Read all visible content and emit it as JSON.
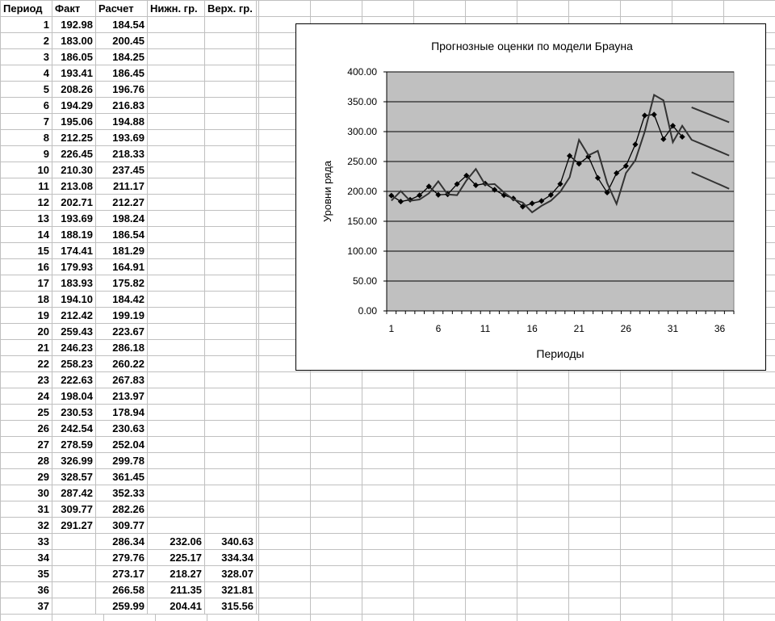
{
  "table": {
    "headers": [
      "Период",
      "Факт",
      "Расчет",
      "Нижн. гр.",
      "Верх. гр."
    ],
    "rows": [
      [
        "1",
        "192.98",
        "184.54",
        "",
        ""
      ],
      [
        "2",
        "183.00",
        "200.45",
        "",
        ""
      ],
      [
        "3",
        "186.05",
        "184.25",
        "",
        ""
      ],
      [
        "4",
        "193.41",
        "186.45",
        "",
        ""
      ],
      [
        "5",
        "208.26",
        "196.76",
        "",
        ""
      ],
      [
        "6",
        "194.29",
        "216.83",
        "",
        ""
      ],
      [
        "7",
        "195.06",
        "194.88",
        "",
        ""
      ],
      [
        "8",
        "212.25",
        "193.69",
        "",
        ""
      ],
      [
        "9",
        "226.45",
        "218.33",
        "",
        ""
      ],
      [
        "10",
        "210.30",
        "237.45",
        "",
        ""
      ],
      [
        "11",
        "213.08",
        "211.17",
        "",
        ""
      ],
      [
        "12",
        "202.71",
        "212.27",
        "",
        ""
      ],
      [
        "13",
        "193.69",
        "198.24",
        "",
        ""
      ],
      [
        "14",
        "188.19",
        "186.54",
        "",
        ""
      ],
      [
        "15",
        "174.41",
        "181.29",
        "",
        ""
      ],
      [
        "16",
        "179.93",
        "164.91",
        "",
        ""
      ],
      [
        "17",
        "183.93",
        "175.82",
        "",
        ""
      ],
      [
        "18",
        "194.10",
        "184.42",
        "",
        ""
      ],
      [
        "19",
        "212.42",
        "199.19",
        "",
        ""
      ],
      [
        "20",
        "259.43",
        "223.67",
        "",
        ""
      ],
      [
        "21",
        "246.23",
        "286.18",
        "",
        ""
      ],
      [
        "22",
        "258.23",
        "260.22",
        "",
        ""
      ],
      [
        "23",
        "222.63",
        "267.83",
        "",
        ""
      ],
      [
        "24",
        "198.04",
        "213.97",
        "",
        ""
      ],
      [
        "25",
        "230.53",
        "178.94",
        "",
        ""
      ],
      [
        "26",
        "242.54",
        "230.63",
        "",
        ""
      ],
      [
        "27",
        "278.59",
        "252.04",
        "",
        ""
      ],
      [
        "28",
        "326.99",
        "299.78",
        "",
        ""
      ],
      [
        "29",
        "328.57",
        "361.45",
        "",
        ""
      ],
      [
        "30",
        "287.42",
        "352.33",
        "",
        ""
      ],
      [
        "31",
        "309.77",
        "282.26",
        "",
        ""
      ],
      [
        "32",
        "291.27",
        "309.77",
        "",
        ""
      ],
      [
        "33",
        "",
        "286.34",
        "232.06",
        "340.63"
      ],
      [
        "34",
        "",
        "279.76",
        "225.17",
        "334.34"
      ],
      [
        "35",
        "",
        "273.17",
        "218.27",
        "328.07"
      ],
      [
        "36",
        "",
        "266.58",
        "211.35",
        "321.81"
      ],
      [
        "37",
        "",
        "259.99",
        "204.41",
        "315.56"
      ]
    ]
  },
  "chart_data": {
    "type": "line",
    "title": "Прогнозные оценки по модели Брауна",
    "xlabel": "Периоды",
    "ylabel": "Уровни ряда",
    "x": [
      1,
      2,
      3,
      4,
      5,
      6,
      7,
      8,
      9,
      10,
      11,
      12,
      13,
      14,
      15,
      16,
      17,
      18,
      19,
      20,
      21,
      22,
      23,
      24,
      25,
      26,
      27,
      28,
      29,
      30,
      31,
      32,
      33,
      34,
      35,
      36,
      37
    ],
    "x_tick_labels": [
      "1",
      "6",
      "11",
      "16",
      "21",
      "26",
      "31",
      "36"
    ],
    "y_tick_labels": [
      "0.00",
      "50.00",
      "100.00",
      "150.00",
      "200.00",
      "250.00",
      "300.00",
      "350.00",
      "400.00"
    ],
    "ylim": [
      0,
      400
    ],
    "grid": "horizontal",
    "legend": "none",
    "plot_background": "#c0c0c0",
    "series": [
      {
        "key": "fact",
        "marker": "diamond",
        "values": [
          192.98,
          183.0,
          186.05,
          193.41,
          208.26,
          194.29,
          195.06,
          212.25,
          226.45,
          210.3,
          213.08,
          202.71,
          193.69,
          188.19,
          174.41,
          179.93,
          183.93,
          194.1,
          212.42,
          259.43,
          246.23,
          258.23,
          222.63,
          198.04,
          230.53,
          242.54,
          278.59,
          326.99,
          328.57,
          287.42,
          309.77,
          291.27,
          null,
          null,
          null,
          null,
          null
        ]
      },
      {
        "key": "calc",
        "marker": "none",
        "values": [
          184.54,
          200.45,
          184.25,
          186.45,
          196.76,
          216.83,
          194.88,
          193.69,
          218.33,
          237.45,
          211.17,
          212.27,
          198.24,
          186.54,
          181.29,
          164.91,
          175.82,
          184.42,
          199.19,
          223.67,
          286.18,
          260.22,
          267.83,
          213.97,
          178.94,
          230.63,
          252.04,
          299.78,
          361.45,
          352.33,
          282.26,
          309.77,
          286.34,
          279.76,
          273.17,
          266.58,
          259.99
        ]
      },
      {
        "key": "lower",
        "marker": "none",
        "values": [
          null,
          null,
          null,
          null,
          null,
          null,
          null,
          null,
          null,
          null,
          null,
          null,
          null,
          null,
          null,
          null,
          null,
          null,
          null,
          null,
          null,
          null,
          null,
          null,
          null,
          null,
          null,
          null,
          null,
          null,
          null,
          null,
          232.06,
          225.17,
          218.27,
          211.35,
          204.41
        ]
      },
      {
        "key": "upper",
        "marker": "none",
        "values": [
          null,
          null,
          null,
          null,
          null,
          null,
          null,
          null,
          null,
          null,
          null,
          null,
          null,
          null,
          null,
          null,
          null,
          null,
          null,
          null,
          null,
          null,
          null,
          null,
          null,
          null,
          null,
          null,
          null,
          null,
          null,
          null,
          340.63,
          334.34,
          328.07,
          321.81,
          315.56
        ]
      }
    ]
  }
}
